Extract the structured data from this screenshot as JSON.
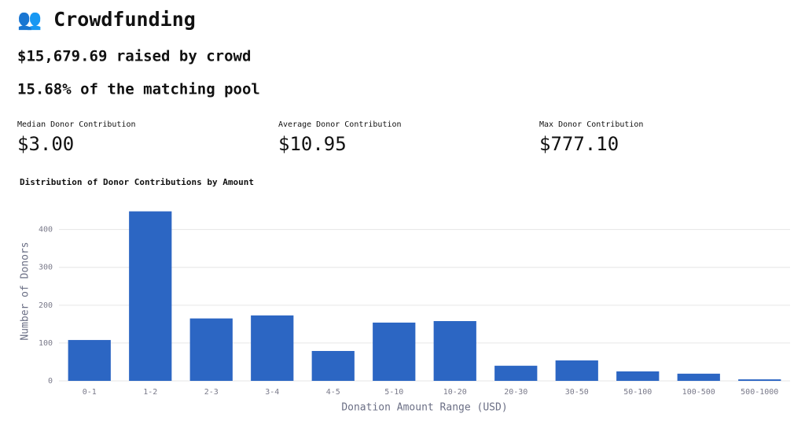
{
  "header": {
    "title": "👥 Crowdfunding",
    "raised": "$15,679.69 raised by crowd",
    "pool": "15.68% of the matching pool"
  },
  "metrics": [
    {
      "label": "Median Donor Contribution",
      "value": "$3.00"
    },
    {
      "label": "Average Donor Contribution",
      "value": "$10.95"
    },
    {
      "label": "Max Donor Contribution",
      "value": "$777.10"
    }
  ],
  "chart_data": {
    "type": "bar",
    "title": "Distribution of Donor Contributions by Amount",
    "x_label": "Donation Amount Range (USD)",
    "y_label": "Number of Donors",
    "categories": [
      "0-1",
      "1-2",
      "2-3",
      "3-4",
      "4-5",
      "5-10",
      "10-20",
      "20-30",
      "30-50",
      "50-100",
      "100-500",
      "500-1000"
    ],
    "values": [
      108,
      448,
      165,
      173,
      79,
      154,
      158,
      40,
      54,
      25,
      19,
      4
    ],
    "color": "#2c66c3",
    "ylim": [
      0,
      470
    ],
    "yticks": [
      0,
      100,
      200,
      300,
      400
    ],
    "grid": true
  }
}
